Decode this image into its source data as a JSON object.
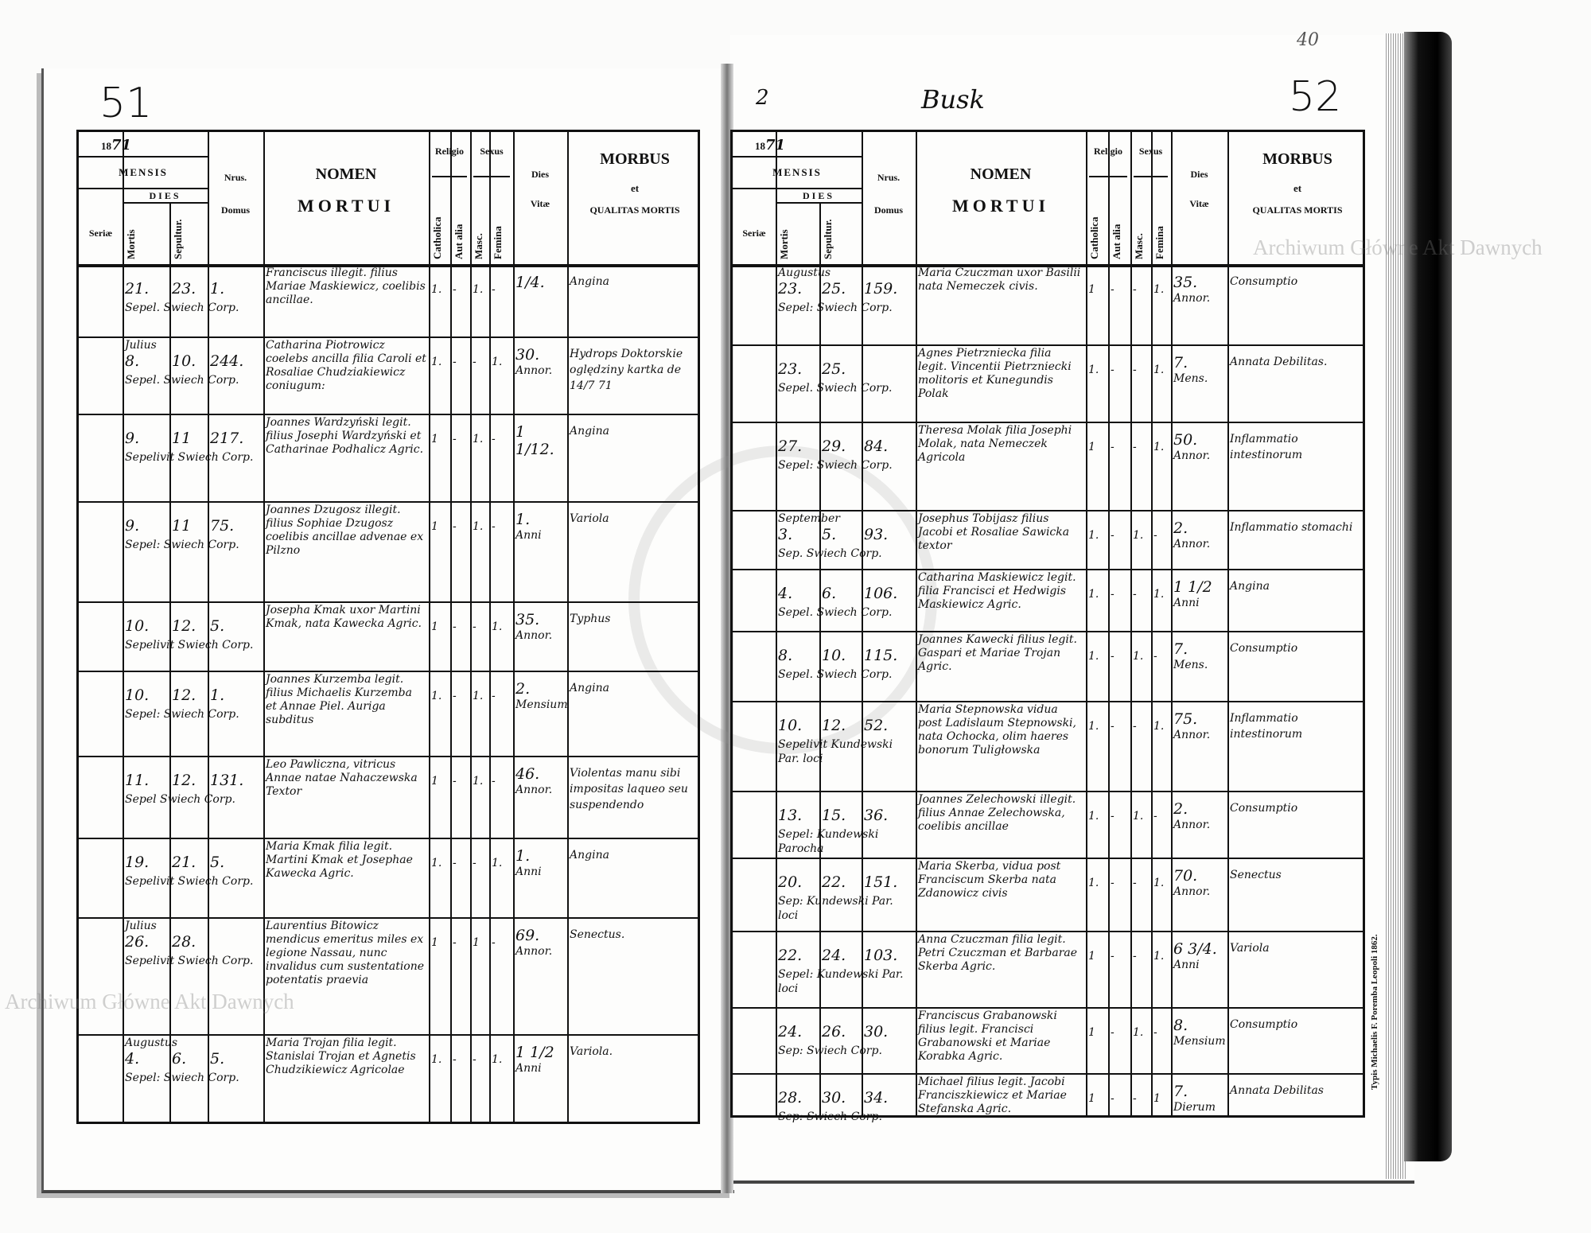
{
  "pages": {
    "left_folio": "51",
    "right_folio": "52",
    "right_page_number": "2",
    "place": "Busk",
    "corner_note": "40",
    "year_printed": "18",
    "year_written": "71"
  },
  "header": {
    "mensis": "MENSIS",
    "dies": "DIES",
    "seriae": "Seriæ",
    "mortis": "Mortis",
    "sepultur": "Sepultur.",
    "nrus": "Nrus.",
    "domus": "Domus",
    "nomen": "NOMEN",
    "mortui": "MORTUI",
    "religio": "Religio",
    "catholica": "Catholica",
    "aut_alia": "Aut alia",
    "sexus": "Sexus",
    "masc": "Masc.",
    "femina": "Femina",
    "dies_label": "Dies",
    "vitae": "Vitæ",
    "morbus": "MORBUS",
    "et": "et",
    "qualitas": "QUALITAS MORTIS"
  },
  "watermark": "Archiwum Główne Akt Dawnych",
  "printer_note": "Typis Michaelis F. Poremba Leopoli 1862.",
  "left_rows": [
    {
      "month": "",
      "mortis": "21.",
      "sepult": "23.",
      "note": "Sepel. Swiech Corp.",
      "domus": "1.",
      "nomen": "Franciscus illegit. filius Mariae Maskiewicz, coelibis ancillae.",
      "cath": "1.",
      "alia": "-",
      "masc": "1.",
      "fem": "-",
      "vitae": "1/4.",
      "unit": "",
      "morbus": "Angina"
    },
    {
      "month": "Julius",
      "mortis": "8.",
      "sepult": "10.",
      "note": "Sepel. Swiech Corp.",
      "domus": "244.",
      "nomen": "Catharina Piotrowicz coelebs ancilla filia Caroli et Rosaliae Chudziakiewicz coniugum:",
      "cath": "1.",
      "alia": "-",
      "masc": "-",
      "fem": "1.",
      "vitae": "30.",
      "unit": "Annor.",
      "morbus": "Hydrops Doktorskie oględziny kartka de 14/7 71"
    },
    {
      "month": "",
      "mortis": "9.",
      "sepult": "11",
      "note": "Sepelivit Swiech Corp.",
      "domus": "217.",
      "nomen": "Joannes Wardzyński legit. filius Josephi Wardzyński et Catharinae Podhalicz Agric.",
      "cath": "1",
      "alia": "-",
      "masc": "1.",
      "fem": "-",
      "vitae": "1 1/12.",
      "unit": "",
      "morbus": "Angina"
    },
    {
      "month": "",
      "mortis": "9.",
      "sepult": "11",
      "note": "Sepel: Swiech Corp.",
      "domus": "75.",
      "nomen": "Joannes Dzugosz illegit. filius Sophiae Dzugosz coelibis ancillae advenae ex Pilzno",
      "cath": "1",
      "alia": "-",
      "masc": "1.",
      "fem": "-",
      "vitae": "1.",
      "unit": "Anni",
      "morbus": "Variola"
    },
    {
      "month": "",
      "mortis": "10.",
      "sepult": "12.",
      "note": "Sepelivit Swiech Corp.",
      "domus": "5.",
      "nomen": "Josepha Kmak uxor Martini Kmak, nata Kawecka Agric.",
      "cath": "1",
      "alia": "-",
      "masc": "-",
      "fem": "1.",
      "vitae": "35.",
      "unit": "Annor.",
      "morbus": "Typhus"
    },
    {
      "month": "",
      "mortis": "10.",
      "sepult": "12.",
      "note": "Sepel: Swiech Corp.",
      "domus": "1.",
      "nomen": "Joannes Kurzemba legit. filius Michaelis Kurzemba et Annae Piel. Auriga subditus",
      "cath": "1.",
      "alia": "-",
      "masc": "1.",
      "fem": "-",
      "vitae": "2.",
      "unit": "Mensium",
      "morbus": "Angina"
    },
    {
      "month": "",
      "mortis": "11.",
      "sepult": "12.",
      "note": "Sepel Swiech Corp.",
      "domus": "131.",
      "nomen": "Leo Pawliczna, vitricus Annae natae Nahaczewska Textor",
      "cath": "1",
      "alia": "-",
      "masc": "1.",
      "fem": "-",
      "vitae": "46.",
      "unit": "Annor.",
      "morbus": "Violentas manu sibi impositas laqueo seu suspendendo"
    },
    {
      "month": "",
      "mortis": "19.",
      "sepult": "21.",
      "note": "Sepelivit Swiech Corp.",
      "domus": "5.",
      "nomen": "Maria Kmak filia legit. Martini Kmak et Josephae Kawecka Agric.",
      "cath": "1.",
      "alia": "-",
      "masc": "-",
      "fem": "1.",
      "vitae": "1.",
      "unit": "Anni",
      "morbus": "Angina"
    },
    {
      "month": "Julius",
      "mortis": "26.",
      "sepult": "28.",
      "note": "Sepelivit Swiech Corp.",
      "domus": "",
      "nomen": "Laurentius Bitowicz mendicus emeritus miles ex legione Nassau, nunc invalidus cum sustentatione potentatis praevia",
      "cath": "1",
      "alia": "-",
      "masc": "1",
      "fem": "-",
      "vitae": "69.",
      "unit": "Annor.",
      "morbus": "Senectus."
    },
    {
      "month": "Augustus",
      "mortis": "4.",
      "sepult": "6.",
      "note": "Sepel: Swiech Corp.",
      "domus": "5.",
      "nomen": "Maria Trojan filia legit. Stanislai Trojan et Agnetis Chudzikiewicz Agricolae",
      "cath": "1.",
      "alia": "-",
      "masc": "-",
      "fem": "1.",
      "vitae": "1 1/2",
      "unit": "Anni",
      "morbus": "Variola."
    }
  ],
  "right_rows": [
    {
      "month": "Augustus",
      "mortis": "23.",
      "sepult": "25.",
      "note": "Sepel: Swiech Corp.",
      "domus": "159.",
      "nomen": "Maria Czuczman uxor Basilii nata Nemeczek civis.",
      "cath": "1",
      "alia": "-",
      "masc": "-",
      "fem": "1.",
      "vitae": "35.",
      "unit": "Annor.",
      "morbus": "Consumptio"
    },
    {
      "month": "",
      "mortis": "23.",
      "sepult": "25.",
      "note": "Sepel. Swiech Corp.",
      "domus": "",
      "nomen": "Agnes Pietrzniecka filia legit. Vincentii Pietrzniecki molitoris et Kunegundis Polak",
      "cath": "1.",
      "alia": "-",
      "masc": "-",
      "fem": "1.",
      "vitae": "7.",
      "unit": "Mens.",
      "morbus": "Annata Debilitas."
    },
    {
      "month": "",
      "mortis": "27.",
      "sepult": "29.",
      "note": "Sepel: Swiech Corp.",
      "domus": "84.",
      "nomen": "Theresa Molak filia Josephi Molak, nata Nemeczek Agricola",
      "cath": "1",
      "alia": "-",
      "masc": "-",
      "fem": "1.",
      "vitae": "50.",
      "unit": "Annor.",
      "morbus": "Inflammatio intestinorum"
    },
    {
      "month": "September",
      "mortis": "3.",
      "sepult": "5.",
      "note": "Sep. Swiech Corp.",
      "domus": "93.",
      "nomen": "Josephus Tobijasz filius Jacobi et Rosaliae Sawicka textor",
      "cath": "1.",
      "alia": "-",
      "masc": "1.",
      "fem": "-",
      "vitae": "2.",
      "unit": "Annor.",
      "morbus": "Inflammatio stomachi"
    },
    {
      "month": "",
      "mortis": "4.",
      "sepult": "6.",
      "note": "Sepel. Swiech Corp.",
      "domus": "106.",
      "nomen": "Catharina Maskiewicz legit. filia Francisci et Hedwigis Maskiewicz Agric.",
      "cath": "1.",
      "alia": "-",
      "masc": "-",
      "fem": "1.",
      "vitae": "1 1/2",
      "unit": "Anni",
      "morbus": "Angina"
    },
    {
      "month": "",
      "mortis": "8.",
      "sepult": "10.",
      "note": "Sepel. Swiech Corp.",
      "domus": "115.",
      "nomen": "Joannes Kawecki filius legit. Gaspari et Mariae Trojan Agric.",
      "cath": "1.",
      "alia": "-",
      "masc": "1.",
      "fem": "-",
      "vitae": "7.",
      "unit": "Mens.",
      "morbus": "Consumptio"
    },
    {
      "month": "",
      "mortis": "10.",
      "sepult": "12.",
      "note": "Sepelivit Kundewski Par. loci",
      "domus": "52.",
      "nomen": "Maria Stepnowska vidua post Ladislaum Stepnowski, nata Ochocka, olim haeres bonorum Tuligłowska",
      "cath": "1.",
      "alia": "-",
      "masc": "-",
      "fem": "1.",
      "vitae": "75.",
      "unit": "Annor.",
      "morbus": "Inflammatio intestinorum"
    },
    {
      "month": "",
      "mortis": "13.",
      "sepult": "15.",
      "note": "Sepel: Kundewski Parocha",
      "domus": "36.",
      "nomen": "Joannes Zelechowski illegit. filius Annae Zelechowska, coelibis ancillae",
      "cath": "1.",
      "alia": "-",
      "masc": "1.",
      "fem": "-",
      "vitae": "2.",
      "unit": "Annor.",
      "morbus": "Consumptio"
    },
    {
      "month": "",
      "mortis": "20.",
      "sepult": "22.",
      "note": "Sep: Kundewski Par. loci",
      "domus": "151.",
      "nomen": "Maria Skerba, vidua post Franciscum Skerba nata Zdanowicz civis",
      "cath": "1.",
      "alia": "-",
      "masc": "-",
      "fem": "1.",
      "vitae": "70.",
      "unit": "Annor.",
      "morbus": "Senectus"
    },
    {
      "month": "",
      "mortis": "22.",
      "sepult": "24.",
      "note": "Sepel: Kundewski Par. loci",
      "domus": "103.",
      "nomen": "Anna Czuczman filia legit. Petri Czuczman et Barbarae Skerba Agric.",
      "cath": "1",
      "alia": "-",
      "masc": "-",
      "fem": "1.",
      "vitae": "6 3/4.",
      "unit": "Anni",
      "morbus": "Variola"
    },
    {
      "month": "",
      "mortis": "24.",
      "sepult": "26.",
      "note": "Sep: Swiech Corp.",
      "domus": "30.",
      "nomen": "Franciscus Grabanowski filius legit. Francisci Grabanowski et Mariae Korabka Agric.",
      "cath": "1",
      "alia": "-",
      "masc": "1.",
      "fem": "-",
      "vitae": "8.",
      "unit": "Mensium",
      "morbus": "Consumptio"
    },
    {
      "month": "",
      "mortis": "28.",
      "sepult": "30.",
      "note": "Sep: Swiech Corp.",
      "domus": "34.",
      "nomen": "Michael filius legit. Jacobi Franciszkiewicz et Mariae Stefanska Agric.",
      "cath": "1",
      "alia": "-",
      "masc": "-",
      "fem": "1",
      "vitae": "7.",
      "unit": "Dierum",
      "morbus": "Annata Debilitas"
    }
  ]
}
